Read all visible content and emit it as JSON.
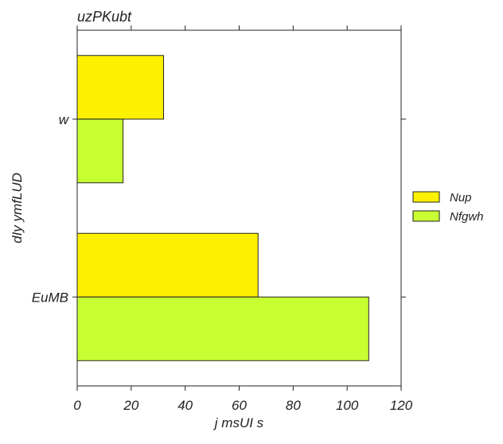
{
  "chart_data": {
    "type": "bar",
    "orientation": "horizontal",
    "title": "uzPKubt",
    "xlabel": "j msUI s",
    "ylabel": "dIy ymfLUD",
    "categories": [
      "w",
      "EuMB"
    ],
    "series": [
      {
        "name": "Nup",
        "values": [
          32,
          67
        ],
        "color": "#fdf000"
      },
      {
        "name": "Nfgwh",
        "values": [
          17,
          108
        ],
        "color": "#c8ff32"
      }
    ],
    "xlim": [
      0,
      120
    ],
    "xticks": [
      0,
      20,
      40,
      60,
      80,
      100,
      120
    ],
    "grid": false,
    "legend": "right"
  }
}
